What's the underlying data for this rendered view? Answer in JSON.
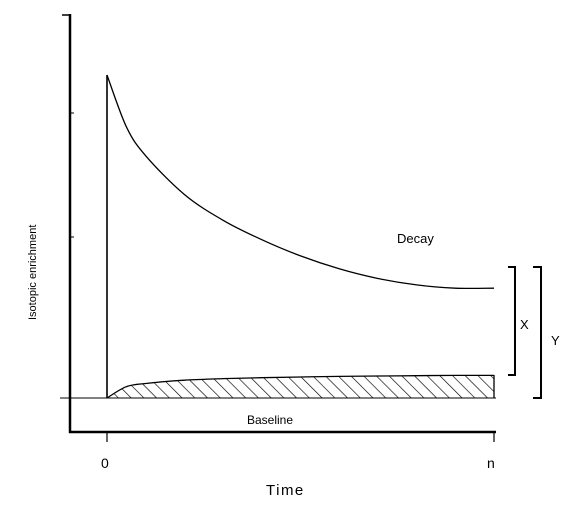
{
  "chart_data": {
    "type": "line",
    "title": "",
    "xlabel": "Time",
    "ylabel": "Isotopic enrichment",
    "x_ticks": [
      "0",
      "n"
    ],
    "xlim": [
      0,
      1
    ],
    "ylim": [
      0,
      1
    ],
    "series": [
      {
        "name": "Decay",
        "x": [
          0,
          0.05,
          0.1,
          0.2,
          0.3,
          0.4,
          0.5,
          0.6,
          0.7,
          0.8,
          0.9,
          1.0
        ],
        "y": [
          1.0,
          0.84,
          0.75,
          0.63,
          0.55,
          0.49,
          0.44,
          0.4,
          0.37,
          0.35,
          0.34,
          0.34
        ]
      },
      {
        "name": "",
        "x": [
          0,
          0.05,
          0.1,
          0.2,
          0.3,
          0.4,
          0.5,
          0.6,
          0.7,
          0.8,
          0.9,
          1.0
        ],
        "y": [
          0.0,
          0.035,
          0.045,
          0.055,
          0.06,
          0.063,
          0.065,
          0.067,
          0.068,
          0.069,
          0.07,
          0.07
        ]
      }
    ],
    "annotations": {
      "baseline": "Baseline",
      "bracket_x": "X",
      "bracket_y": "Y",
      "decay_label": "Decay"
    },
    "shaded_area": "hatched",
    "grid": false
  }
}
